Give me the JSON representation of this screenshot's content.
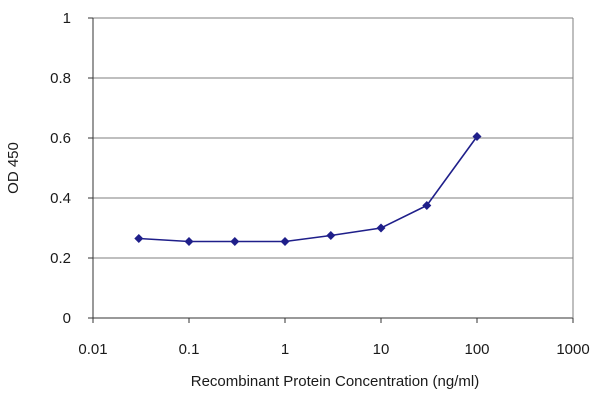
{
  "chart_data": {
    "type": "line",
    "title": "",
    "xlabel": "Recombinant Protein Concentration (ng/ml)",
    "ylabel": "OD 450",
    "x_scale": "log",
    "xlim": [
      0.01,
      1000
    ],
    "ylim": [
      0,
      1
    ],
    "x_ticks": [
      "0.01",
      "0.1",
      "1",
      "10",
      "100",
      "1000"
    ],
    "y_ticks": [
      "0",
      "0.2",
      "0.4",
      "0.6",
      "0.8",
      "1"
    ],
    "grid": "horizontal",
    "legend": "none",
    "series": [
      {
        "color": "#1f1f8a",
        "x": [
          0.03,
          0.1,
          0.3,
          1,
          3,
          10,
          30,
          100
        ],
        "y": [
          0.265,
          0.255,
          0.255,
          0.255,
          0.275,
          0.3,
          0.375,
          0.605
        ]
      }
    ]
  },
  "colors": {
    "grid": "#7f7f7f",
    "axis": "#333333",
    "line": "#1f1f8a",
    "marker": "#1f1f8a"
  }
}
